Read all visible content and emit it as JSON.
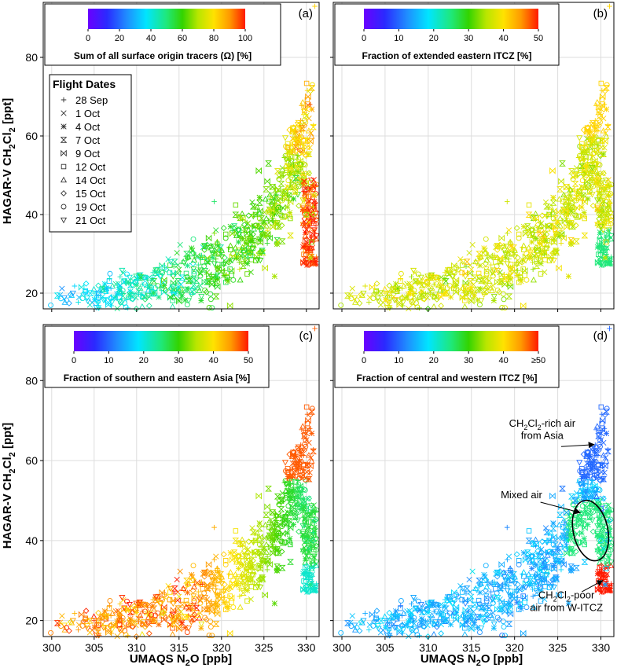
{
  "chart_data": {
    "type": "scatter",
    "xlabel_prefix": "UMAQS  N",
    "xlabel_sub": "2",
    "xlabel_suffix": "O [ppb]",
    "ylabel_prefix": "HAGAR-V  CH",
    "ylabel_sub1": "2",
    "ylabel_mid": "Cl",
    "ylabel_sub2": "2",
    "ylabel_suffix": " [ppt]",
    "xlim": [
      299,
      331.5
    ],
    "ylim": [
      16,
      94
    ],
    "xticks": [
      "300",
      "305",
      "310",
      "315",
      "320",
      "325",
      "330"
    ],
    "xtick_values": [
      300,
      305,
      310,
      315,
      320,
      325,
      330
    ],
    "yticks": [
      "20",
      "40",
      "60",
      "80"
    ],
    "ytick_values": [
      20,
      40,
      60,
      80
    ],
    "grid": true,
    "panels": [
      {
        "letter": "(a)",
        "colorbar_label": "Sum of all surface origin tracers (Ω) [%]",
        "colorbar_ticks": [
          "0",
          "20",
          "40",
          "60",
          "80",
          "100"
        ],
        "colorbar_range": [
          0,
          100
        ]
      },
      {
        "letter": "(b)",
        "colorbar_label": "Fraction of extended eastern ITCZ [%]",
        "colorbar_ticks": [
          "0",
          "10",
          "20",
          "30",
          "40",
          "50"
        ],
        "colorbar_range": [
          0,
          50
        ]
      },
      {
        "letter": "(c)",
        "colorbar_label": "Fraction of southern and eastern Asia [%]",
        "colorbar_ticks": [
          "0",
          "10",
          "20",
          "30",
          "40",
          "50"
        ],
        "colorbar_range": [
          0,
          50
        ]
      },
      {
        "letter": "(d)",
        "colorbar_label": "Fraction of central and western ITCZ [%]",
        "colorbar_ticks": [
          "0",
          "10",
          "20",
          "30",
          "40",
          "≥50"
        ],
        "colorbar_range": [
          0,
          50
        ]
      }
    ],
    "legend": {
      "title": "Flight Dates",
      "placement": "upper-left of panel (a)",
      "items": [
        {
          "label": "28 Sep",
          "marker": "plus"
        },
        {
          "label": "1 Oct",
          "marker": "cross"
        },
        {
          "label": "4 Oct",
          "marker": "asterisk"
        },
        {
          "label": "7 Oct",
          "marker": "hourglass"
        },
        {
          "label": "9 Oct",
          "marker": "bowtie"
        },
        {
          "label": "12 Oct",
          "marker": "square"
        },
        {
          "label": "14 Oct",
          "marker": "triangle-up"
        },
        {
          "label": "15 Oct",
          "marker": "diamond"
        },
        {
          "label": "19 Oct",
          "marker": "circle"
        },
        {
          "label": "21 Oct",
          "marker": "triangle-down"
        }
      ]
    },
    "annotations": {
      "rich_line1_pre": "CH",
      "rich_line1_sub1": "2",
      "rich_line1_mid": "Cl",
      "rich_line1_sub2": "2",
      "rich_line1_post": "-rich air",
      "rich_line2": "from Asia",
      "rich_target": [
        329.2,
        64
      ],
      "mixed": "Mixed air",
      "mixed_target": [
        327.6,
        47
      ],
      "mixed_ellipse_center": [
        328.8,
        42.5
      ],
      "poor_line1_pre": "CH",
      "poor_line1_sub1": "2",
      "poor_line1_mid": "Cl",
      "poor_line1_sub2": "2",
      "poor_line1_post": "-poor",
      "poor_line2": "air from W-ITCZ",
      "poor_target": [
        330.2,
        30
      ]
    },
    "series_note": "Approximately 700 points per panel; same (N2O, CH2Cl2) positions in all panels, coloured by each panel's tracer fraction.",
    "series": [
      {
        "name": "28 Sep",
        "marker": "plus",
        "x": [
          305.0,
          310.5,
          316.0,
          319.5,
          323.0,
          326.5,
          329.0,
          330.4,
          330.8,
          331.0
        ],
        "y": [
          20.0,
          24.0,
          29.0,
          33.0,
          38.0,
          45.0,
          55.0,
          68.0,
          42.0,
          93.0
        ]
      },
      {
        "name": "1 Oct",
        "marker": "cross",
        "x": [
          304.5,
          308.0,
          311.5,
          315.0,
          317.5,
          320.0,
          323.5,
          326.0,
          328.0,
          330.3
        ],
        "y": [
          17.0,
          21.0,
          24.0,
          26.0,
          25.0,
          30.0,
          35.0,
          40.0,
          45.0,
          38.0
        ]
      },
      {
        "name": "4 Oct",
        "marker": "asterisk",
        "x": [
          307.5,
          310.0,
          312.0,
          316.0,
          319.0,
          322.0,
          325.0,
          328.5,
          330.5
        ],
        "y": [
          19.0,
          22.0,
          20.0,
          27.0,
          29.0,
          33.0,
          38.0,
          44.0,
          29.0
        ]
      },
      {
        "name": "7 Oct",
        "marker": "hourglass",
        "x": [
          306.0,
          310.5,
          314.5,
          318.0,
          321.5,
          324.5,
          327.0,
          329.5
        ],
        "y": [
          21.0,
          24.0,
          28.0,
          32.0,
          37.0,
          43.0,
          50.0,
          62.0
        ]
      },
      {
        "name": "9 Oct",
        "marker": "bowtie",
        "x": [
          303.5,
          309.0,
          313.0,
          318.5,
          322.5,
          326.0,
          329.0,
          330.2
        ],
        "y": [
          21.5,
          23.0,
          27.0,
          34.0,
          39.0,
          47.0,
          58.0,
          70.0
        ]
      },
      {
        "name": "12 Oct",
        "marker": "square",
        "x": [
          305.5,
          308.5,
          312.5,
          316.5,
          320.5,
          324.0,
          327.5,
          330.6
        ],
        "y": [
          20.0,
          23.0,
          26.0,
          30.0,
          35.0,
          40.0,
          46.0,
          33.0
        ]
      },
      {
        "name": "14 Oct",
        "marker": "triangle-up",
        "x": [
          307.0,
          311.0,
          315.5,
          319.5,
          323.0,
          326.5,
          329.5
        ],
        "y": [
          19.0,
          24.0,
          28.0,
          33.0,
          37.0,
          44.0,
          51.0
        ]
      },
      {
        "name": "15 Oct",
        "marker": "diamond",
        "x": [
          309.5,
          313.5,
          318.0,
          322.0,
          325.5,
          328.5,
          330.8,
          331.0
        ],
        "y": [
          22.0,
          26.0,
          31.0,
          36.0,
          41.0,
          47.0,
          40.0,
          45.0
        ]
      },
      {
        "name": "19 Oct",
        "marker": "circle",
        "x": [
          311.0,
          316.0,
          320.5,
          324.5,
          328.0,
          330.0,
          330.7
        ],
        "y": [
          24.0,
          29.0,
          34.0,
          39.0,
          45.0,
          40.0,
          73.0
        ]
      },
      {
        "name": "21 Oct",
        "marker": "triangle-down",
        "x": [
          302.5,
          306.5,
          310.0,
          314.0,
          318.0,
          322.0,
          326.0,
          329.0
        ],
        "y": [
          20.0,
          21.0,
          23.0,
          28.0,
          32.0,
          36.0,
          42.0,
          52.0
        ]
      }
    ]
  }
}
